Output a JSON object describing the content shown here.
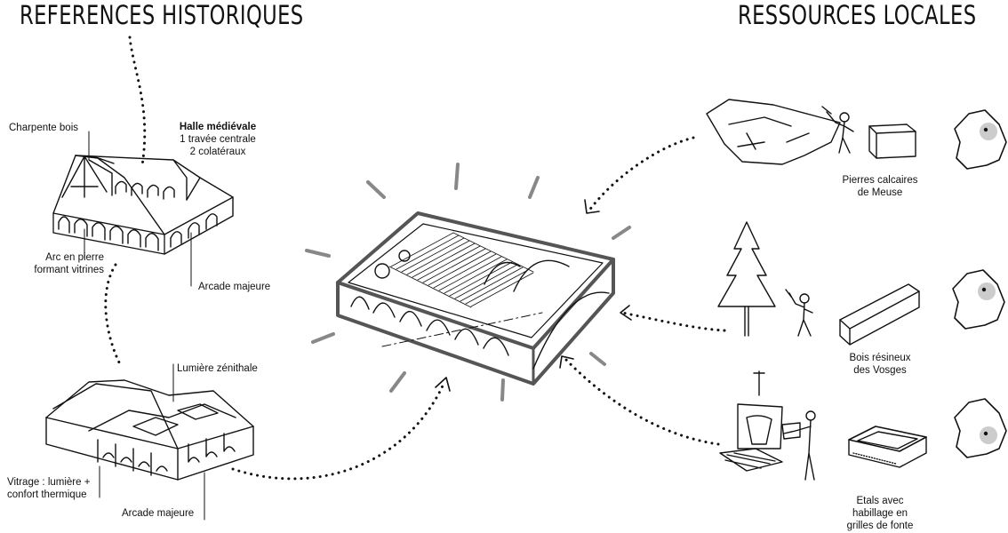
{
  "titles": {
    "left": "REFERENCES HISTORIQUES",
    "right": "RESSOURCES LOCALES"
  },
  "halle": {
    "name": "Halle médiévale",
    "line1": "1 travée centrale",
    "line2": "2 colatéraux",
    "charpente": "Charpente bois",
    "arc_line1": "Arc en pierre",
    "arc_line2": "formant vitrines",
    "arcade": "Arcade majeure"
  },
  "building": {
    "lumiere": "Lumière zénithale",
    "vitrage_line1": "Vitrage : lumière +",
    "vitrage_line2": "confort thermique",
    "arcade": "Arcade majeure"
  },
  "resources": [
    {
      "line1": "Pierres calcaires",
      "line2": "de Meuse"
    },
    {
      "line1": "Bois résineux",
      "line2": "des Vosges"
    },
    {
      "line1": "Etals avec",
      "line2": "habillage en",
      "line3": "grilles de fonte"
    }
  ]
}
